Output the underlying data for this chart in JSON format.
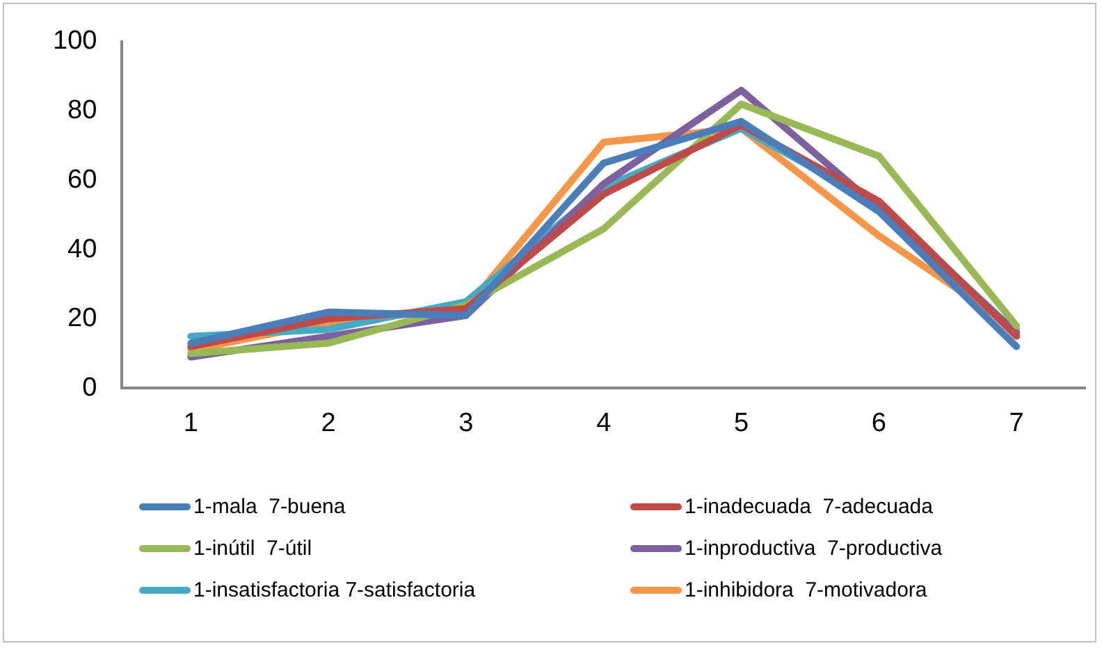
{
  "chart_data": {
    "type": "line",
    "categories": [
      "1",
      "2",
      "3",
      "4",
      "5",
      "6",
      "7"
    ],
    "ylim": [
      0,
      100
    ],
    "yticks": [
      0,
      20,
      40,
      60,
      80,
      100
    ],
    "grid": false,
    "legend": "bottom",
    "marker": "none",
    "line_style": "solid",
    "series": [
      {
        "name": "1-mala  7-buena",
        "color": "#4a7ebb",
        "values": [
          13,
          22,
          21,
          65,
          77,
          51,
          12
        ]
      },
      {
        "name": "1-inadecuada  7-adecuada",
        "color": "#be4b48",
        "values": [
          12,
          20,
          23,
          56,
          76,
          54,
          15
        ]
      },
      {
        "name": "1-inútil  7-útil",
        "color": "#98b954",
        "values": [
          10,
          13,
          24,
          46,
          82,
          67,
          18
        ]
      },
      {
        "name": "1-inproductiva  7-productiva",
        "color": "#7d60a0",
        "values": [
          9,
          15,
          21,
          59,
          86,
          52,
          16
        ]
      },
      {
        "name": "1-insatisfactoria 7-satisfactoria",
        "color": "#46aac5",
        "values": [
          15,
          17,
          25,
          58,
          75,
          53,
          16
        ]
      },
      {
        "name": "1-inhibidora  7-motivadora",
        "color": "#f79646",
        "values": [
          11,
          19,
          23,
          71,
          75,
          44,
          17
        ]
      }
    ]
  }
}
